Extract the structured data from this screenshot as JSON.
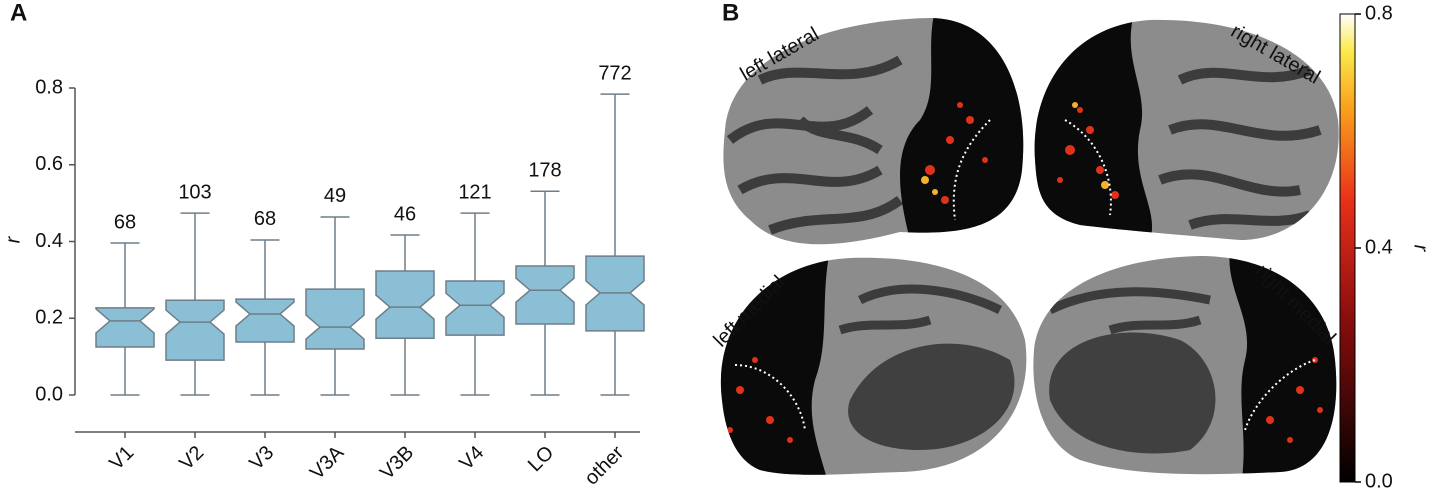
{
  "panels": [
    "A",
    "B"
  ],
  "chart_data": {
    "type": "box",
    "ylabel": "r",
    "categories": [
      "V1",
      "V2",
      "V3",
      "V3A",
      "V3B",
      "V4",
      "LO",
      "other"
    ],
    "whisker_low": [
      0,
      0,
      0,
      0,
      0,
      0,
      0,
      0
    ],
    "q1": [
      0.125,
      0.091,
      0.138,
      0.12,
      0.148,
      0.156,
      0.185,
      0.167
    ],
    "median": [
      0.193,
      0.19,
      0.211,
      0.177,
      0.229,
      0.234,
      0.273,
      0.266
    ],
    "q3": [
      0.227,
      0.247,
      0.25,
      0.276,
      0.323,
      0.297,
      0.336,
      0.362
    ],
    "whisker_high": [
      0.396,
      0.474,
      0.404,
      0.464,
      0.417,
      0.474,
      0.531,
      0.784
    ],
    "counts": [
      68,
      103,
      68,
      49,
      46,
      121,
      178,
      772
    ],
    "color": "#8bbfd6",
    "edge_color": "#6e7e88",
    "ylim": [
      0,
      0.8
    ],
    "yticks": [
      {
        "value": 0,
        "label": "0.0"
      },
      {
        "value": 0.2,
        "label": "0.2"
      },
      {
        "value": 0.4,
        "label": "0.4"
      },
      {
        "value": 0.6,
        "label": "0.6"
      },
      {
        "value": 0.8,
        "label": "0.8"
      }
    ]
  },
  "brain": {
    "views": [
      "left lateral",
      "right lateral",
      "left medial",
      "right medial"
    ],
    "colorbar": {
      "label": "r",
      "lim": [
        0,
        0.8
      ],
      "ticks": [
        {
          "value": 0,
          "label": "0.0"
        },
        {
          "value": 0.4,
          "label": "0.4"
        },
        {
          "value": 0.8,
          "label": "0.8"
        }
      ]
    }
  }
}
